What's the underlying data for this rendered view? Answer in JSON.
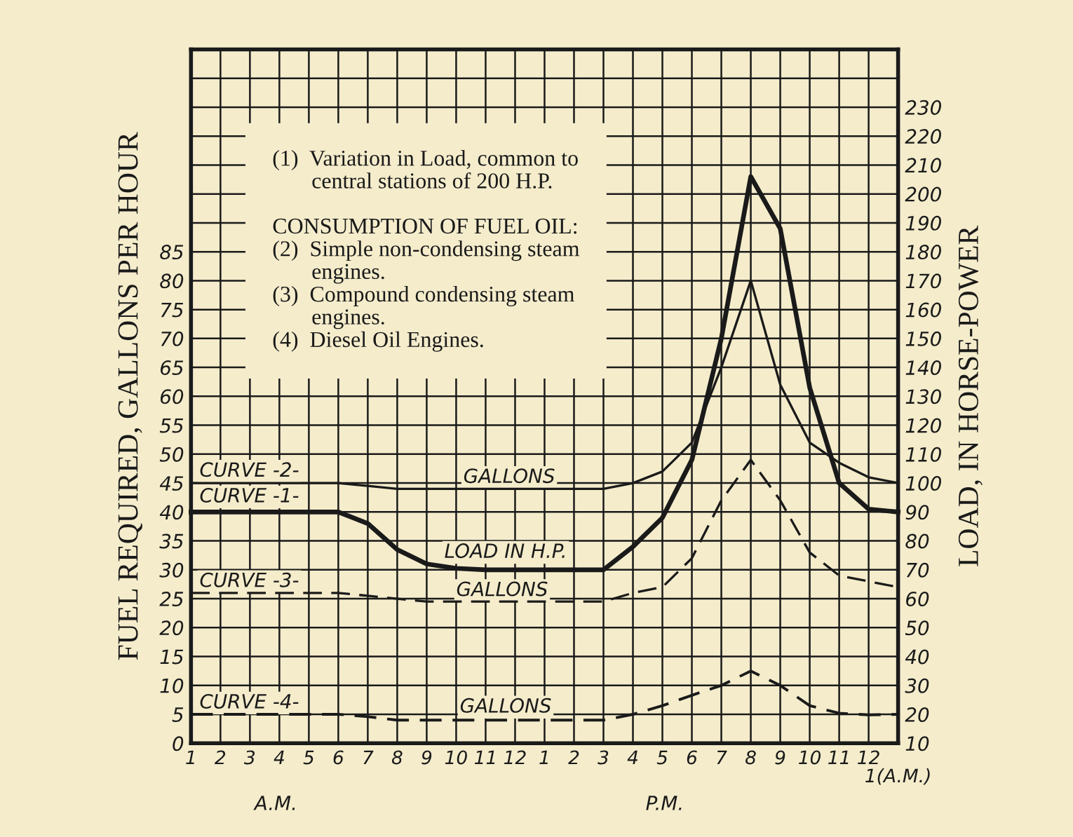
{
  "chart_data": {
    "type": "line",
    "ylabel": "FUEL REQUIRED, GALLONS PER HOUR",
    "y2label": "LOAD, IN HORSE-POWER",
    "categories": [
      "1",
      "2",
      "3",
      "4",
      "5",
      "6",
      "7",
      "8",
      "9",
      "10",
      "11",
      "12",
      "1",
      "2",
      "3",
      "4",
      "5",
      "6",
      "7",
      "8",
      "9",
      "10",
      "11",
      "12",
      "1(A.M.)"
    ],
    "ylim": [
      0,
      120
    ],
    "y2lim": [
      10,
      250
    ],
    "yticks": [
      0,
      5,
      10,
      15,
      20,
      25,
      30,
      35,
      40,
      45,
      50,
      55,
      60,
      65,
      70,
      75,
      80,
      85,
      {
        "value": 90,
        "label": null
      },
      {
        "value": 95,
        "label": null
      },
      {
        "value": 100,
        "label": null
      },
      {
        "value": 105,
        "label": null
      },
      {
        "value": 110,
        "label": null
      },
      {
        "value": 115,
        "label": null
      }
    ],
    "y2ticks": [
      10,
      20,
      30,
      40,
      50,
      60,
      70,
      80,
      90,
      100,
      110,
      120,
      130,
      140,
      150,
      160,
      170,
      180,
      190,
      200,
      210,
      220,
      230
    ],
    "grid": true,
    "marker": "none",
    "series": [
      {
        "color": "#1a1a1a",
        "axis": "y2",
        "line_style": "solid",
        "values": [
          90,
          90,
          90,
          90,
          90,
          90,
          86,
          77,
          72,
          70.5,
          70,
          70,
          70,
          70,
          70,
          78,
          88,
          108,
          150,
          206,
          188,
          133,
          100,
          91,
          90
        ]
      },
      {
        "color": "#1a1a1a",
        "axis": "y",
        "line_style": "solid",
        "values": [
          45,
          45,
          45,
          45,
          45,
          45,
          44.5,
          44,
          44,
          44,
          44,
          44,
          44,
          44,
          44,
          45,
          47,
          52,
          65,
          80,
          62,
          52,
          48.5,
          46,
          45
        ]
      },
      {
        "color": "#1a1a1a",
        "axis": "y",
        "line_style": "dashed",
        "values": [
          26,
          26,
          26,
          26,
          26,
          26,
          25.5,
          25,
          24.5,
          24.5,
          24.5,
          24.5,
          24.5,
          24.5,
          24.5,
          26,
          27,
          32,
          42,
          49,
          42,
          33,
          29,
          28,
          27
        ]
      },
      {
        "color": "#1a1a1a",
        "axis": "y",
        "line_style": "dashed",
        "values": [
          5,
          5,
          5,
          5,
          5,
          5,
          4.6,
          4,
          4,
          4,
          4,
          4,
          4,
          4,
          4,
          5,
          6.5,
          8.3,
          10,
          12.5,
          10,
          6.5,
          5.2,
          4.9,
          5
        ]
      }
    ],
    "annotations": [
      "(1)  Variation in Load, common to\n       central stations of 200 H.P.\n\nCONSUMPTION OF FUEL OIL:\n(2)  Simple non-condensing steam\n       engines.\n(3)  Compound condensing steam\n       engines.\n(4)  Diesel Oil Engines.",
      "A.M.",
      "P.M.",
      "CURVE -2-",
      "CURVE -1-",
      "CURVE -3-",
      "CURVE -4-",
      "GALLONS",
      "LOAD IN H.P.",
      "GALLONS",
      "GALLONS"
    ]
  }
}
